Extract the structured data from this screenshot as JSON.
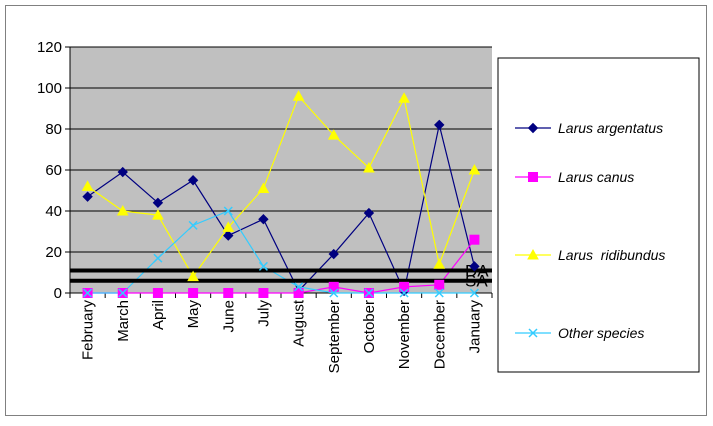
{
  "chart_data": {
    "type": "line",
    "categories": [
      "February",
      "March",
      "April",
      "May",
      "June",
      "July",
      "August",
      "September",
      "October",
      "November",
      "December",
      "January"
    ],
    "ylim": [
      0,
      120
    ],
    "yticks": [
      0,
      20,
      40,
      60,
      80,
      100,
      120
    ],
    "grid": true,
    "legend_position": "right",
    "plot_background": "#c0c0c0",
    "series": [
      {
        "name": "Larus argentatus",
        "color": "#000080",
        "marker": "diamond",
        "values": [
          47,
          59,
          44,
          55,
          28,
          36,
          1,
          19,
          39,
          1,
          82,
          13
        ]
      },
      {
        "name": "Larus canus",
        "color": "#ff00ff",
        "marker": "square",
        "values": [
          0,
          0,
          0,
          0,
          0,
          0,
          0,
          3,
          0,
          3,
          4,
          26
        ]
      },
      {
        "name": "Larus  ridibundus",
        "color": "#ffff00",
        "marker": "triangle",
        "values": [
          52,
          40,
          38,
          8,
          32,
          51,
          96,
          77,
          61,
          95,
          14,
          60
        ]
      },
      {
        "name": "Other species",
        "color": "#33ccff",
        "marker": "x",
        "values": [
          0,
          0,
          17,
          33,
          40,
          13,
          3,
          0,
          0,
          0,
          0,
          0
        ]
      }
    ],
    "reference_lines": [
      {
        "label": "DA",
        "value": 11
      },
      {
        "label": "SA",
        "value": 6
      }
    ]
  }
}
